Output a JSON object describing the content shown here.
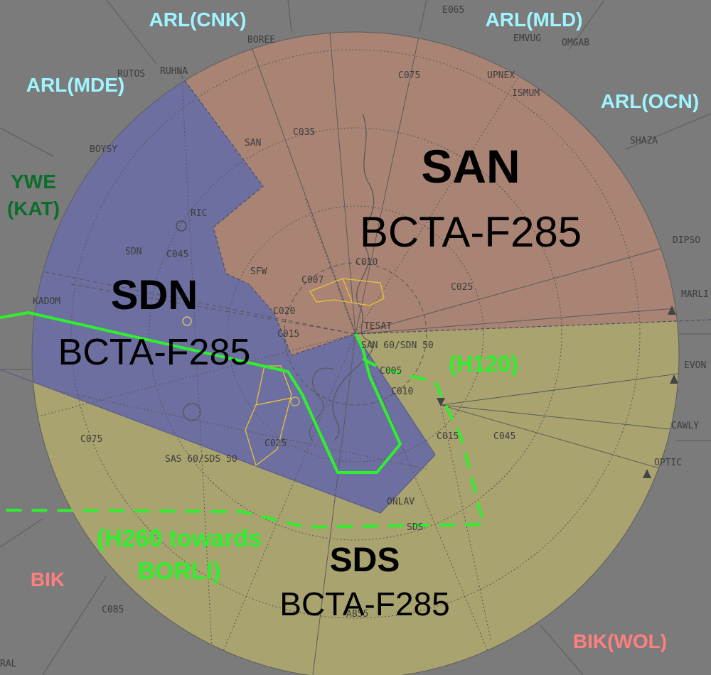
{
  "colors": {
    "background": "#7b7b7b",
    "san_fill": "#a98474",
    "sdn_fill": "#6d6fa0",
    "sds_fill": "#a9a36f",
    "route_green": "#2ef02e",
    "adjacent_blue": "#9ff5ff",
    "adjacent_red": "#ff7f7f",
    "adjacent_dark_green": "#0a6e2a",
    "airspace_yellow": "#e9c23a"
  },
  "sectors": {
    "san": {
      "name": "SAN",
      "sub": "BCTA-F285"
    },
    "sdn": {
      "name": "SDN",
      "sub": "BCTA-F285"
    },
    "sds": {
      "name": "SDS",
      "sub": "BCTA-F285"
    }
  },
  "adjacent": {
    "arl_cnk": "ARL(CNK)",
    "arl_mld": "ARL(MLD)",
    "arl_mde": "ARL(MDE)",
    "arl_ocn": "ARL(OCN)",
    "ywe": "YWE",
    "kat": "(KAT)",
    "bik": "BIK",
    "bik_wol": "BIK(WOL)"
  },
  "route_labels": {
    "h120": "(H120)",
    "h260_line1": "(H260 towards",
    "h260_line2": "BORLI)"
  },
  "fixes": {
    "e065": "E065",
    "boree": "BOREE",
    "emvug": "EMVUG",
    "omgab": "OMGAB",
    "c075_n": "C075",
    "upnex": "UPNEX",
    "ismum": "ISMUM",
    "rutos": "RUTOS",
    "ruhna": "RUHNA",
    "c035": "C035",
    "san": "SAN",
    "boysy": "BOYSY",
    "shaza": "SHAZA",
    "ric": "RIC",
    "dipso": "DIPSO",
    "sdn": "SDN",
    "c045_w": "C045",
    "c010_c": "C010",
    "sfw": "SFW",
    "c007": "C007",
    "c025_e": "C025",
    "marli": "MARLI",
    "kadom": "KADOM",
    "c020": "C020",
    "c015_w": "C015",
    "tesat": "TESAT",
    "san60": "SAN 60/SDN 50",
    "c005": "C005",
    "evon": "EVON",
    "c010_s": "C010",
    "c015_s": "C015",
    "c045_e": "C045",
    "cawly": "CAWLY",
    "c075_w": "C075",
    "c025_s": "C025",
    "sas60": "SAS 60/SDS 50",
    "optic": "OPTIC",
    "onlav": "ONLAV",
    "sds": "SDS",
    "c085": "C085",
    "ral": "RAL",
    "ab55": "AB55"
  }
}
